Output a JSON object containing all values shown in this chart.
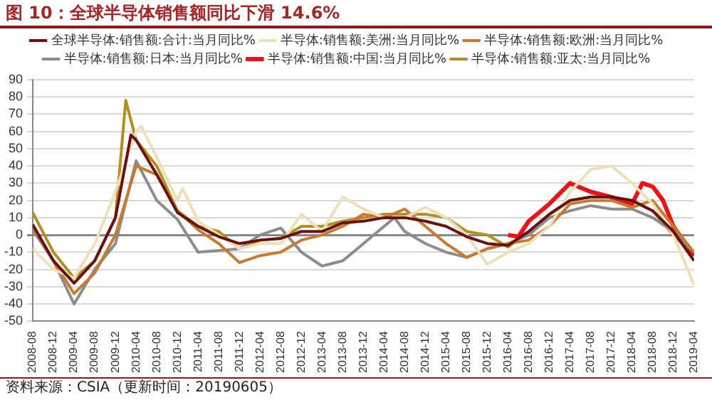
{
  "chart_data": {
    "type": "line",
    "title": "图 10：全球半导体销售额同比下滑 14.6%",
    "annotations": [
      "资料来源：CSIA（更新时间：20190605）"
    ],
    "xlim": [
      "2008-08",
      "2019-04"
    ],
    "xticks": [
      "2008-08",
      "2008-12",
      "2009-04",
      "2009-08",
      "2009-12",
      "2010-04",
      "2010-08",
      "2010-12",
      "2011-04",
      "2011-08",
      "2011-12",
      "2012-04",
      "2012-08",
      "2012-12",
      "2013-04",
      "2013-08",
      "2013-12",
      "2014-04",
      "2014-08",
      "2014-12",
      "2015-04",
      "2015-08",
      "2015-12",
      "2016-04",
      "2016-08",
      "2016-12",
      "2017-04",
      "2017-08",
      "2017-12",
      "2018-04",
      "2018-08",
      "2018-12",
      "2019-04"
    ],
    "ylim": [
      -50,
      90
    ],
    "yticks": [
      -50,
      -40,
      -30,
      -20,
      -10,
      0,
      10,
      20,
      30,
      40,
      50,
      60,
      70,
      80,
      90
    ],
    "grid": "y",
    "legend": "top",
    "marker": "none",
    "line_style": "solid",
    "series": [
      {
        "name": "全球半导体:销售额:合计:当月同比%",
        "color": "#6b1010",
        "x": [
          "2008-08",
          "2008-12",
          "2009-04",
          "2009-08",
          "2009-12",
          "2010-03",
          "2010-04",
          "2010-08",
          "2010-12",
          "2011-04",
          "2011-08",
          "2011-12",
          "2012-04",
          "2012-08",
          "2012-12",
          "2013-04",
          "2013-08",
          "2013-12",
          "2014-04",
          "2014-08",
          "2014-12",
          "2015-04",
          "2015-08",
          "2015-12",
          "2016-04",
          "2016-08",
          "2016-12",
          "2017-04",
          "2017-08",
          "2017-12",
          "2018-04",
          "2018-08",
          "2018-12",
          "2019-04"
        ],
        "values": [
          6,
          -15,
          -28,
          -15,
          10,
          58,
          55,
          35,
          13,
          5,
          -1,
          -5,
          -3,
          -2,
          2,
          2,
          7,
          8,
          10,
          10,
          8,
          5,
          -1,
          -5,
          -6,
          2,
          12,
          20,
          22,
          22,
          20,
          14,
          2,
          -15
        ]
      },
      {
        "name": "半导体:销售额:美洲:当月同比%",
        "color": "#eedfb8",
        "x": [
          "2008-08",
          "2008-12",
          "2009-04",
          "2009-08",
          "2009-12",
          "2010-04",
          "2010-05",
          "2010-08",
          "2010-12",
          "2011-01",
          "2011-04",
          "2011-08",
          "2011-12",
          "2012-04",
          "2012-08",
          "2012-12",
          "2013-04",
          "2013-08",
          "2013-12",
          "2014-04",
          "2014-08",
          "2014-12",
          "2015-04",
          "2015-08",
          "2015-12",
          "2016-04",
          "2016-08",
          "2016-12",
          "2017-04",
          "2017-08",
          "2017-12",
          "2018-04",
          "2018-08",
          "2018-12",
          "2019-04"
        ],
        "values": [
          -8,
          -20,
          -25,
          -5,
          25,
          60,
          63,
          45,
          20,
          27,
          8,
          0,
          -8,
          -5,
          -5,
          12,
          2,
          22,
          15,
          10,
          10,
          16,
          10,
          0,
          -17,
          -10,
          -5,
          5,
          25,
          38,
          40,
          30,
          18,
          0,
          -29
        ]
      },
      {
        "name": "半导体:销售额:欧洲:当月同比%",
        "color": "#c87a30",
        "x": [
          "2008-08",
          "2008-12",
          "2009-04",
          "2009-08",
          "2009-12",
          "2010-04",
          "2010-08",
          "2010-12",
          "2011-04",
          "2011-08",
          "2011-12",
          "2012-04",
          "2012-08",
          "2012-12",
          "2013-04",
          "2013-08",
          "2013-12",
          "2014-04",
          "2014-08",
          "2014-12",
          "2015-04",
          "2015-08",
          "2015-12",
          "2016-04",
          "2016-08",
          "2016-12",
          "2017-04",
          "2017-08",
          "2017-12",
          "2018-04",
          "2018-08",
          "2018-12",
          "2019-04"
        ],
        "values": [
          5,
          -15,
          -34,
          -22,
          0,
          40,
          35,
          14,
          3,
          -5,
          -16,
          -12,
          -10,
          -3,
          0,
          5,
          12,
          10,
          15,
          5,
          -5,
          -13,
          -8,
          -5,
          -3,
          5,
          18,
          20,
          20,
          16,
          20,
          5,
          -10
        ]
      },
      {
        "name": "半导体:销售额:日本:当月同比%",
        "color": "#8c8c8c",
        "x": [
          "2008-08",
          "2008-12",
          "2009-04",
          "2009-08",
          "2009-12",
          "2010-04",
          "2010-08",
          "2010-12",
          "2011-04",
          "2011-08",
          "2011-12",
          "2012-04",
          "2012-08",
          "2012-12",
          "2013-04",
          "2013-08",
          "2013-12",
          "2014-04",
          "2014-06",
          "2014-08",
          "2014-12",
          "2015-04",
          "2015-08",
          "2015-12",
          "2016-04",
          "2016-08",
          "2016-12",
          "2017-04",
          "2017-08",
          "2017-12",
          "2018-04",
          "2018-08",
          "2018-12",
          "2019-04"
        ],
        "values": [
          3,
          -15,
          -40,
          -20,
          -5,
          43,
          20,
          9,
          -10,
          -9,
          -8,
          0,
          4,
          -10,
          -18,
          -15,
          -5,
          5,
          10,
          2,
          -5,
          -10,
          -13,
          -8,
          -5,
          0,
          10,
          14,
          17,
          15,
          15,
          10,
          2,
          -10
        ]
      },
      {
        "name": "半导体:销售额:中国:当月同比%",
        "color": "#e8141a",
        "x": [
          "2016-04",
          "2016-06",
          "2016-08",
          "2016-12",
          "2017-04",
          "2017-08",
          "2017-12",
          "2018-04",
          "2018-06",
          "2018-08",
          "2018-10",
          "2018-12",
          "2019-04"
        ],
        "values": [
          0,
          -1,
          8,
          18,
          30,
          25,
          22,
          18,
          30,
          28,
          20,
          5,
          -12
        ]
      },
      {
        "name": "半导体:销售额:亚太:当月同比%",
        "color": "#b09020",
        "x": [
          "2008-08",
          "2008-12",
          "2009-04",
          "2009-08",
          "2009-12",
          "2010-02",
          "2010-04",
          "2010-08",
          "2010-12",
          "2011-04",
          "2011-08",
          "2011-12",
          "2012-04",
          "2012-08",
          "2012-12",
          "2013-04",
          "2013-08",
          "2013-12",
          "2014-04",
          "2014-08",
          "2014-12",
          "2015-04",
          "2015-08",
          "2015-12",
          "2016-04",
          "2016-08",
          "2016-12",
          "2017-04",
          "2017-08",
          "2017-12",
          "2018-04",
          "2018-08",
          "2018-12",
          "2019-04"
        ],
        "values": [
          13,
          -10,
          -25,
          -15,
          10,
          78,
          55,
          40,
          14,
          5,
          2,
          -8,
          -3,
          -2,
          5,
          5,
          8,
          10,
          12,
          12,
          12,
          10,
          2,
          0,
          -7,
          2,
          12,
          20,
          22,
          22,
          20,
          14,
          0,
          -12
        ]
      }
    ]
  }
}
